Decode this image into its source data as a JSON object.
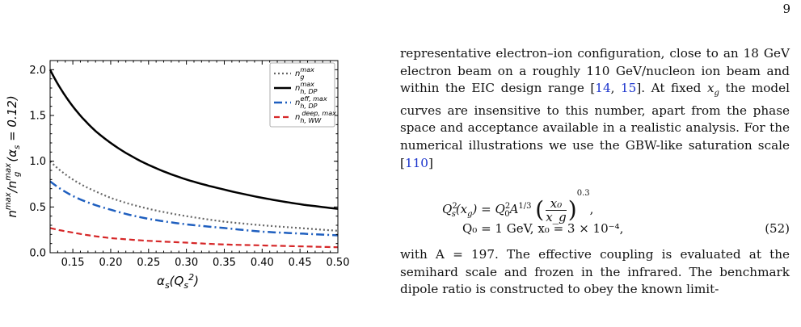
{
  "page_number": "9",
  "chart_data": {
    "type": "line",
    "xlabel": "α_s(Q_s^2)",
    "ylabel": "n^max / n_g^max(α_s = 0.12)",
    "xlim": [
      0.12,
      0.5
    ],
    "ylim": [
      0.0,
      2.1
    ],
    "xticks": [
      "0.15",
      "0.20",
      "0.25",
      "0.30",
      "0.35",
      "0.40",
      "0.45",
      "0.50"
    ],
    "yticks": [
      "0.0",
      "0.5",
      "1.0",
      "1.5",
      "2.0"
    ],
    "grid": false,
    "legend_position": "top-right",
    "x": [
      0.12,
      0.15,
      0.18,
      0.2,
      0.25,
      0.3,
      0.35,
      0.4,
      0.45,
      0.5
    ],
    "series": [
      {
        "name": "n_g^max",
        "color": "#666666",
        "style": "dotted",
        "values": [
          1.0,
          0.8,
          0.67,
          0.6,
          0.48,
          0.4,
          0.34,
          0.3,
          0.27,
          0.24
        ]
      },
      {
        "name": "n_h,DP^max",
        "color": "#000000",
        "style": "solid",
        "values": [
          2.0,
          1.6,
          1.33,
          1.2,
          0.96,
          0.8,
          0.69,
          0.6,
          0.53,
          0.48
        ]
      },
      {
        "name": "n_h,DP^eff,max",
        "color": "#1f5fbf",
        "style": "dashdot",
        "values": [
          0.78,
          0.62,
          0.52,
          0.47,
          0.37,
          0.31,
          0.27,
          0.23,
          0.21,
          0.19
        ]
      },
      {
        "name": "n_h,WW^deep,max",
        "color": "#d62728",
        "style": "dashed",
        "values": [
          0.27,
          0.22,
          0.18,
          0.16,
          0.13,
          0.11,
          0.09,
          0.08,
          0.07,
          0.06
        ]
      }
    ]
  },
  "text": {
    "para1": "representative electron–ion configuration, close to an 18 GeV electron beam on a roughly 110 GeV/nucleon ion beam and within the EIC design range [14, 15]. At fixed x_g the model curves are insensitive to this number, apart from the phase space and acceptance available in a realistic analysis. For the numerical illustrations we use the GBW-like saturation scale [110]",
    "para1_a": "representative electron–ion configuration, close to an 18 GeV electron beam on a roughly 110 GeV/nucleon ion beam and within the EIC design range [",
    "ref14": "14",
    "sep1": ", ",
    "ref15": "15",
    "para1_b": "]. At fixed ",
    "xg": "x",
    "xg_sub": "g",
    "para1_c": " the model curves are insensitive to this number, apart from the phase space and acceptance available in a realistic analysis. For the numerical illustrations we use the GBW-like saturation scale [",
    "ref110": "110",
    "para1_d": "]",
    "eq_lhs": "Q",
    "eq_lhs_sup": "2",
    "eq_lhs_sub": "s",
    "eq_lhs_arg": "(x",
    "eq_lhs_arg_sub": "g",
    "eq_lhs_arg_end": ") = Q",
    "eq_q0_sup": "2",
    "eq_q0_sub": "0",
    "eq_A": "A",
    "eq_A_sup": "1/3",
    "eq_frac_num": "x₀",
    "eq_frac_den": "x_g",
    "eq_exp": "0.3",
    "eq_comma": ",",
    "eq_line2": "Q₀ = 1 GeV,        x₀ = 3 × 10⁻⁴,",
    "eq_number": "(52)",
    "para2": "with A = 197. The effective coupling is evaluated at the semihard scale and frozen in the infrared. The benchmark dipole ratio is constructed to obey the known limit-"
  }
}
